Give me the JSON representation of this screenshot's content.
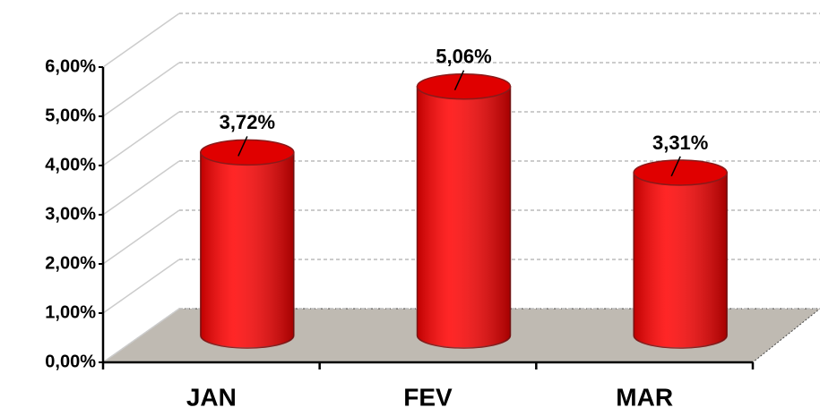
{
  "chart_data": {
    "type": "bar",
    "categories": [
      "JAN",
      "FEV",
      "MAR"
    ],
    "values": [
      3.72,
      5.06,
      3.31
    ],
    "value_labels": [
      "3,72%",
      "5,06%",
      "3,31%"
    ],
    "color": "#ff0000",
    "ylim": [
      0,
      6
    ],
    "yticks": [
      {
        "value": 0,
        "label": "0,00%"
      },
      {
        "value": 1,
        "label": "1,00%"
      },
      {
        "value": 2,
        "label": "2,00%"
      },
      {
        "value": 3,
        "label": "3,00%"
      },
      {
        "value": 4,
        "label": "4,00%"
      },
      {
        "value": 5,
        "label": "5,00%"
      },
      {
        "value": 6,
        "label": "6,00%"
      }
    ],
    "grid": true
  }
}
